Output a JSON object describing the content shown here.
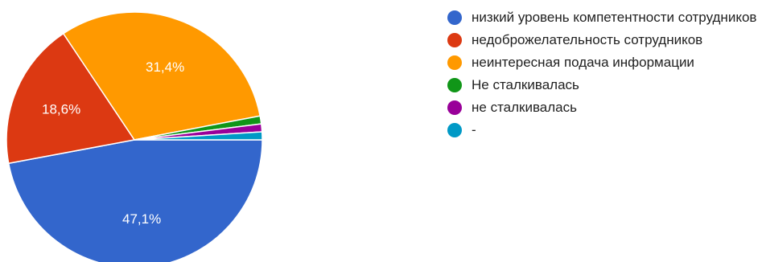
{
  "chart_data": {
    "type": "pie",
    "slices": [
      {
        "label": "низкий уровень компетентности сотрудников",
        "value": 47.1,
        "display": "47,1%",
        "color": "#3366cc"
      },
      {
        "label": "недоброжелательность сотрудников",
        "value": 18.6,
        "display": "18,6%",
        "color": "#dc3912"
      },
      {
        "label": "неинтересная подача информации",
        "value": 31.4,
        "display": "31,4%",
        "color": "#ff9900"
      },
      {
        "label": "Не сталкивалась",
        "value": 1.0,
        "display": "",
        "color": "#109618"
      },
      {
        "label": "не сталкивалась",
        "value": 1.0,
        "display": "",
        "color": "#990099"
      },
      {
        "label": "-",
        "value": 1.0,
        "display": "",
        "color": "#0099c6"
      }
    ],
    "start_angle_deg": 0,
    "direction": "clockwise",
    "legend_position": "right"
  }
}
